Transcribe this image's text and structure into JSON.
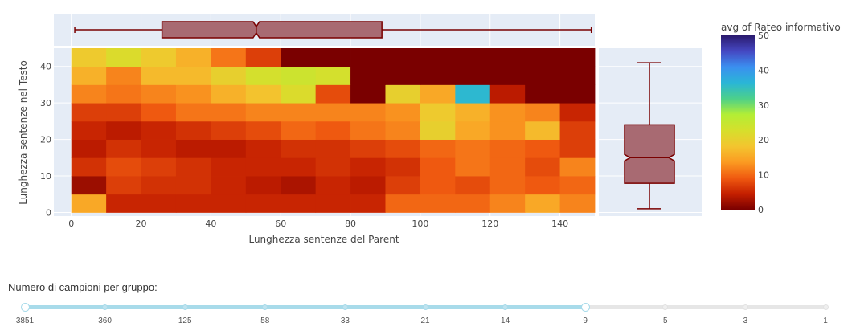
{
  "chart_data": {
    "type": "heatmap",
    "title": "",
    "xlabel": "Lunghezza sentenze del Parent",
    "ylabel": "Lunghezza sentenze nel Testo",
    "x_bins": [
      0,
      10,
      20,
      30,
      40,
      50,
      60,
      70,
      80,
      90,
      100,
      110,
      120,
      130,
      140
    ],
    "y_bins": [
      0,
      5,
      10,
      15,
      20,
      25,
      30,
      35,
      40
    ],
    "x_ticks": [
      0,
      20,
      40,
      60,
      80,
      100,
      120,
      140
    ],
    "y_ticks": [
      0,
      10,
      20,
      30,
      40
    ],
    "xlim": [
      -5,
      150
    ],
    "ylim": [
      -1,
      45
    ],
    "colorbar": {
      "title": "avg of Rateo informativo",
      "range": [
        0,
        50
      ],
      "ticks": [
        0,
        10,
        20,
        30,
        40,
        50
      ],
      "colorscale": [
        "#7a0000",
        "#c41f00",
        "#f05a10",
        "#fb9b22",
        "#f3c52f",
        "#d6df2c",
        "#b3ee35",
        "#4cd08a",
        "#2ab6d6",
        "#3b8ff0",
        "#4548c2",
        "#2b1a6e"
      ]
    },
    "z": [
      [
        15,
        5,
        5,
        5,
        5,
        5,
        5,
        5,
        5,
        10,
        10,
        10,
        12,
        15,
        12
      ],
      [
        2,
        7,
        6,
        6,
        5,
        4,
        3,
        5,
        4,
        7,
        9,
        8,
        10,
        9,
        10
      ],
      [
        6,
        8,
        7,
        6,
        5,
        5,
        5,
        6,
        5,
        6,
        9,
        11,
        10,
        8,
        12
      ],
      [
        4,
        6,
        5,
        4,
        4,
        5,
        6,
        6,
        7,
        8,
        10,
        11,
        10,
        9,
        7
      ],
      [
        5,
        4,
        5,
        6,
        7,
        8,
        10,
        9,
        11,
        12,
        20,
        15,
        13,
        17,
        7
      ],
      [
        7,
        7,
        9,
        11,
        11,
        12,
        12,
        12,
        12,
        13,
        19,
        16,
        13,
        12,
        5
      ],
      [
        12,
        11,
        12,
        13,
        16,
        18,
        22,
        8,
        0,
        20,
        15,
        36,
        4,
        0,
        0
      ],
      [
        16,
        12,
        17,
        17,
        20,
        23,
        24,
        23,
        0,
        0,
        0,
        0,
        0,
        0,
        0
      ],
      [
        19,
        22,
        19,
        16,
        11,
        7,
        0,
        0,
        0,
        0,
        0,
        0,
        0,
        0,
        0
      ]
    ],
    "marginal_x_box": {
      "min": 1,
      "q1": 26,
      "median": 53,
      "q3": 89,
      "max": 149
    },
    "marginal_y_box": {
      "min": 1,
      "q1": 8,
      "median": 15,
      "q3": 24,
      "max": 41
    },
    "box_color": "#7a0000",
    "box_fill": "#a86a72",
    "panel_bg": "#e5ecf6"
  },
  "slider": {
    "title": "Numero di campioni per gruppo:",
    "steps": [
      "3851",
      "360",
      "125",
      "58",
      "33",
      "21",
      "14",
      "9",
      "5",
      "3",
      "1"
    ],
    "active_range": [
      "3851",
      "9"
    ]
  }
}
